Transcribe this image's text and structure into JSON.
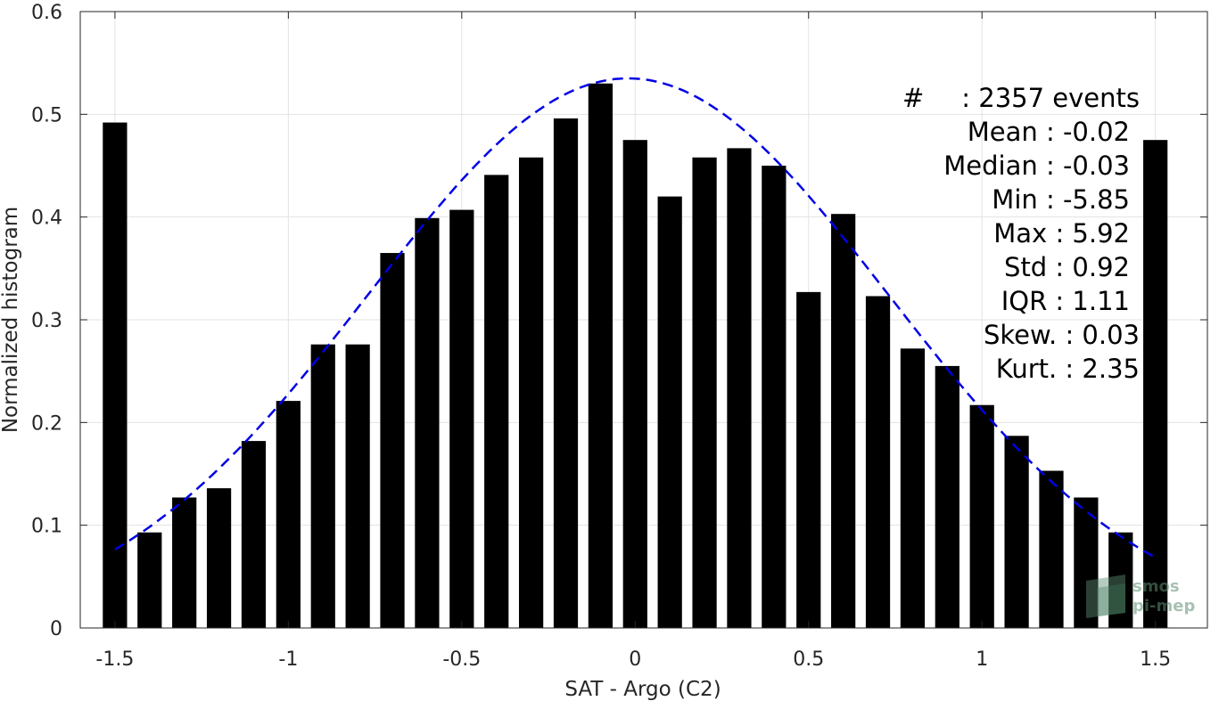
{
  "chart_data": {
    "type": "bar",
    "xlabel": "SAT - Argo (C2)",
    "ylabel": "Normalized histogram",
    "xlim": [
      -1.6,
      1.65
    ],
    "ylim": [
      0,
      0.6
    ],
    "xticks": [
      -1.5,
      -1,
      -0.5,
      0,
      0.5,
      1,
      1.5
    ],
    "xtick_labels": [
      "-1.5",
      "-1",
      "-0.5",
      "0",
      "0.5",
      "1",
      "1.5"
    ],
    "yticks": [
      0,
      0.1,
      0.2,
      0.3,
      0.4,
      0.5,
      0.6
    ],
    "ytick_labels": [
      "0",
      "0.1",
      "0.2",
      "0.3",
      "0.4",
      "0.5",
      "0.6"
    ],
    "grid": true,
    "bar_color": "#000000",
    "bar_width": 0.07,
    "x": [
      -1.5,
      -1.4,
      -1.3,
      -1.2,
      -1.1,
      -1.0,
      -0.9,
      -0.8,
      -0.7,
      -0.6,
      -0.5,
      -0.4,
      -0.3,
      -0.2,
      -0.1,
      0.0,
      0.1,
      0.2,
      0.3,
      0.4,
      0.5,
      0.6,
      0.7,
      0.8,
      0.9,
      1.0,
      1.1,
      1.2,
      1.3,
      1.4,
      1.5
    ],
    "values": [
      0.492,
      0.093,
      0.127,
      0.136,
      0.182,
      0.221,
      0.276,
      0.276,
      0.365,
      0.399,
      0.407,
      0.441,
      0.458,
      0.496,
      0.53,
      0.475,
      0.42,
      0.458,
      0.467,
      0.45,
      0.327,
      0.403,
      0.323,
      0.272,
      0.255,
      0.217,
      0.187,
      0.153,
      0.127,
      0.093,
      0.475
    ],
    "fit_curve": {
      "style": "dashed",
      "color": "#0000e6",
      "mean": -0.02,
      "std": 0.75,
      "peak": 0.535,
      "x_range": [
        -1.5,
        1.5
      ]
    },
    "annotations": [
      {
        "label": "#",
        "text": ": 2357 events"
      },
      {
        "label": "Mean",
        "text": "Mean : -0.02"
      },
      {
        "label": "Median",
        "text": "Median : -0.03"
      },
      {
        "label": "Min",
        "text": "Min : -5.85"
      },
      {
        "label": "Max",
        "text": "Max : 5.92"
      },
      {
        "label": "Std",
        "text": "Std : 0.92"
      },
      {
        "label": "IQR",
        "text": "IQR : 1.11"
      },
      {
        "label": "Skew",
        "text": "Skew. : 0.03"
      },
      {
        "label": "Kurt",
        "text": "Kurt. : 2.35"
      }
    ],
    "watermark": [
      "smos",
      "pi-mep"
    ]
  }
}
